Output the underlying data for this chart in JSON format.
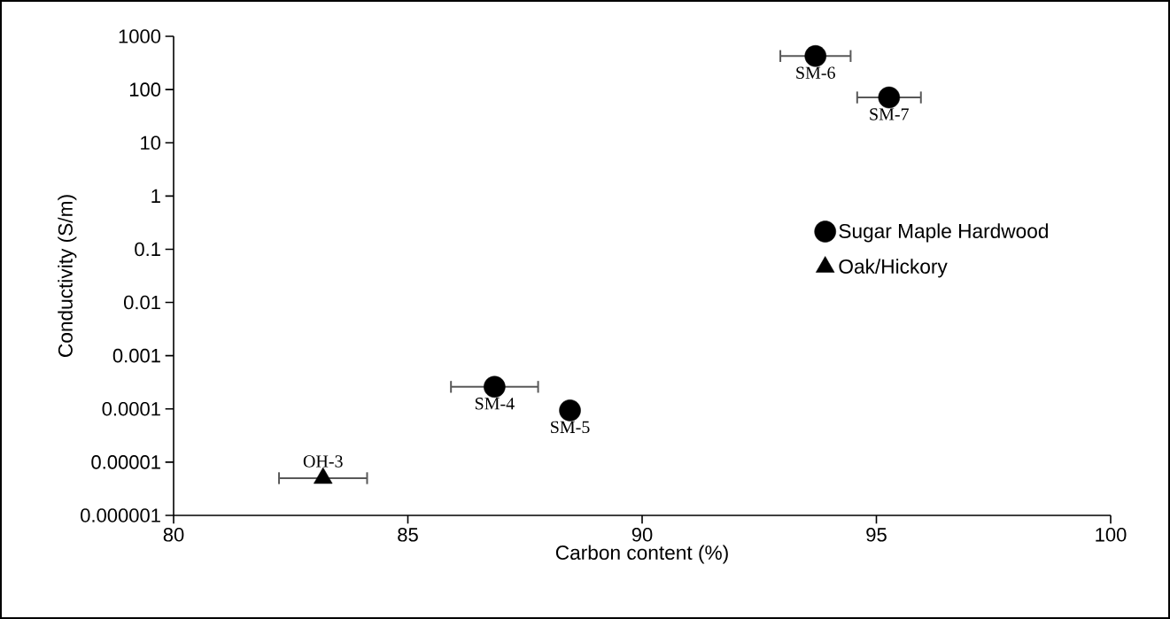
{
  "chart_data": {
    "type": "scatter",
    "xlabel": "Carbon content (%)",
    "ylabel": "Conductivity (S/m)",
    "series": [
      {
        "name": "Sugar Maple Hardwood",
        "color": "#000000",
        "marker": "circle",
        "x": [
          86.85,
          88.46,
          93.7,
          95.27
        ],
        "values": [
          0.00026,
          9.4e-05,
          426,
          71
        ],
        "xerrors": [
          0.93,
          null,
          0.75,
          0.68
        ]
      },
      {
        "name": "Oak/Hickory",
        "color": "#000000",
        "marker": "triangle",
        "x": [
          83.19
        ],
        "values": [
          5e-06
        ],
        "xerrors": [
          0.94
        ]
      }
    ],
    "annotations": [
      {
        "text": "SM-4",
        "x": 86.85,
        "y": 0.00026
      },
      {
        "text": "SM-5",
        "x": 88.46,
        "y": 9.4e-05
      },
      {
        "text": "SM-6",
        "x": 93.7,
        "y": 426
      },
      {
        "text": "SM-7",
        "x": 95.27,
        "y": 71
      },
      {
        "text": "OH-3",
        "x": 83.19,
        "y": 5e-06
      }
    ],
    "log": "y",
    "xlim": [
      80,
      100
    ],
    "ylim": [
      1e-06,
      1000
    ],
    "xticks": [
      80,
      85,
      90,
      95,
      100
    ],
    "yticks": [
      {
        "value": 1e-06,
        "label": "0.000001"
      },
      {
        "value": 1e-05,
        "label": "0.00001"
      },
      {
        "value": 0.0001,
        "label": "0.0001"
      },
      {
        "value": 0.001,
        "label": "0.001"
      },
      {
        "value": 0.01,
        "label": "0.01"
      },
      {
        "value": 0.1,
        "label": "0.1"
      },
      {
        "value": 1,
        "label": "1"
      },
      {
        "value": 10,
        "label": "10"
      },
      {
        "value": 100,
        "label": "100"
      },
      {
        "value": 1000,
        "label": "1000"
      }
    ],
    "grid": false,
    "legend": "right"
  }
}
